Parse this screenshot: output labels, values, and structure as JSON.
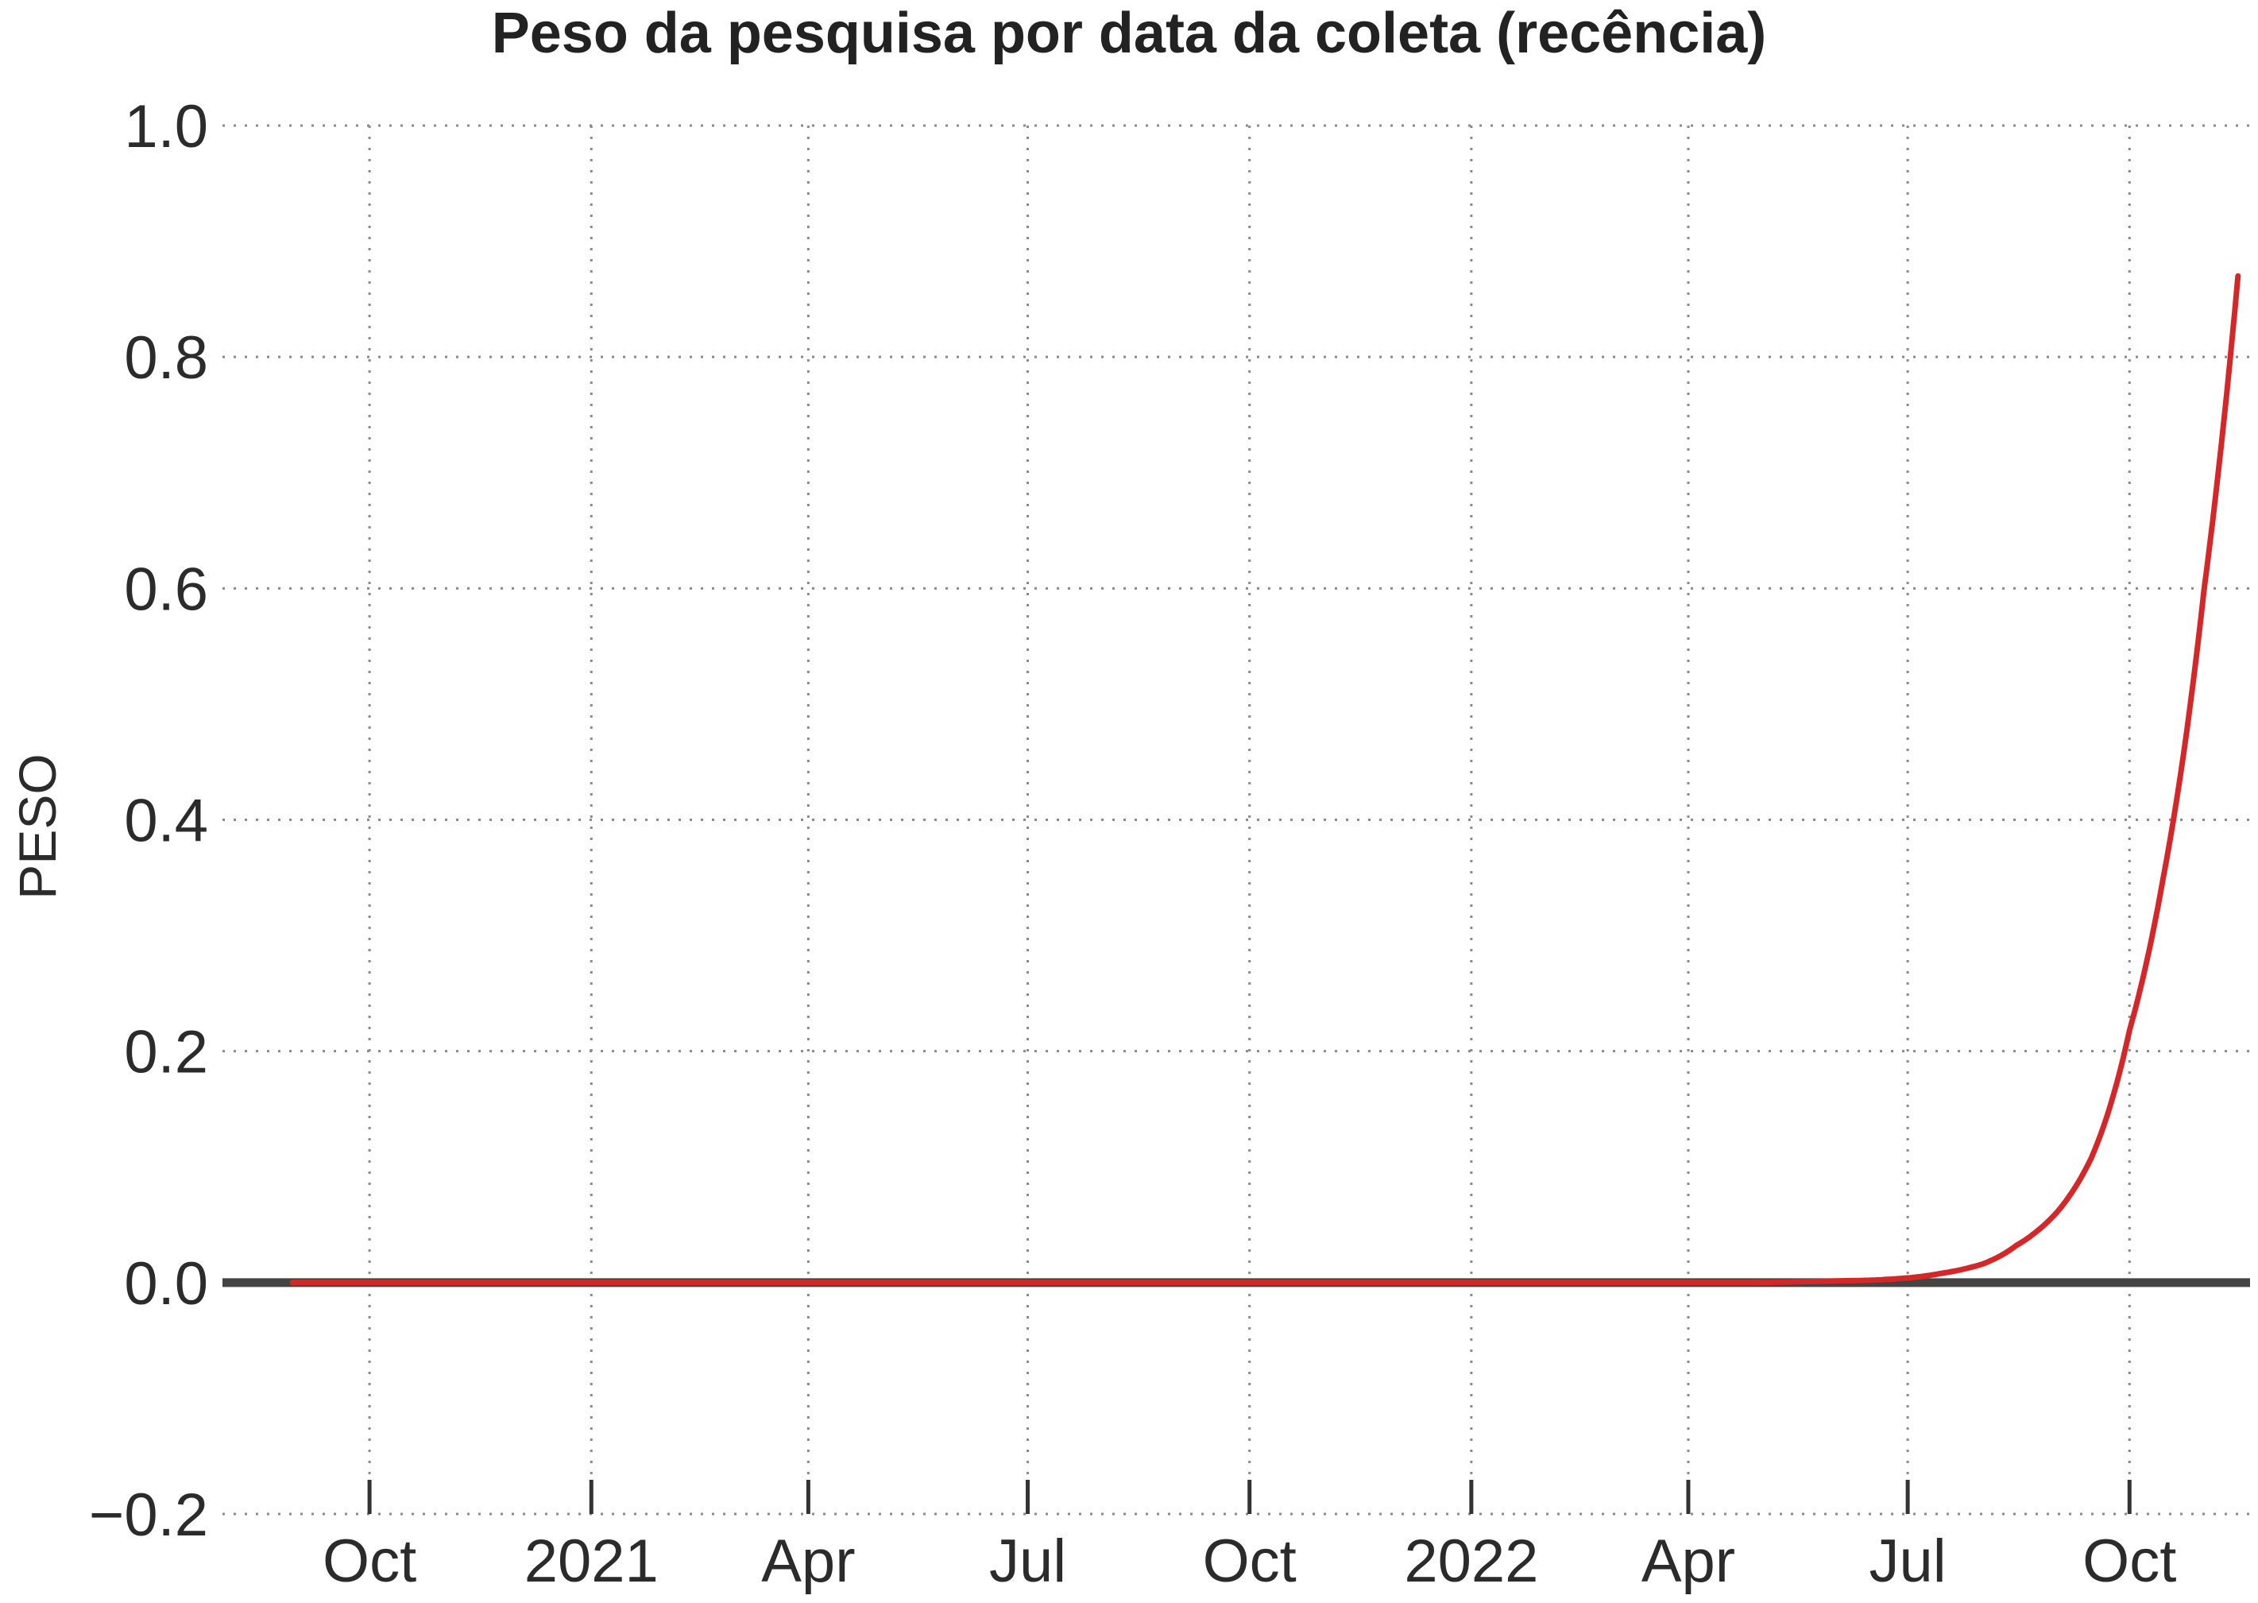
{
  "chart_data": {
    "type": "line",
    "title": "Peso da pesquisa por data da coleta (recência)",
    "xlabel": "",
    "ylabel": "PESO",
    "grid": true,
    "legend": "none",
    "xlim": [
      "2020-08-01",
      "2022-11-20"
    ],
    "ylim": [
      -0.2,
      1.0
    ],
    "x_ticks": [
      {
        "date": "2020-10-01",
        "label": "Oct"
      },
      {
        "date": "2021-01-01",
        "label": "2021"
      },
      {
        "date": "2021-04-01",
        "label": "Apr"
      },
      {
        "date": "2021-07-01",
        "label": "Jul"
      },
      {
        "date": "2021-10-01",
        "label": "Oct"
      },
      {
        "date": "2022-01-01",
        "label": "2022"
      },
      {
        "date": "2022-04-01",
        "label": "Apr"
      },
      {
        "date": "2022-07-01",
        "label": "Jul"
      },
      {
        "date": "2022-10-01",
        "label": "Oct"
      }
    ],
    "y_ticks": [
      {
        "value": 1.0,
        "label": "1.0"
      },
      {
        "value": 0.8,
        "label": "0.8"
      },
      {
        "value": 0.6,
        "label": "0.6"
      },
      {
        "value": 0.4,
        "label": "0.4"
      },
      {
        "value": 0.2,
        "label": "0.2"
      },
      {
        "value": 0.0,
        "label": "0.0"
      },
      {
        "value": -0.2,
        "label": "−0.2"
      }
    ],
    "baseline": {
      "value": 0.0,
      "color": "#444444"
    },
    "series": [
      {
        "color": "#d62728",
        "x": [
          "2020-08-30",
          "2021-07-01",
          "2022-05-01",
          "2022-06-15",
          "2022-07-01",
          "2022-07-15",
          "2022-08-01",
          "2022-08-15",
          "2022-09-01",
          "2022-09-15",
          "2022-10-01",
          "2022-10-15",
          "2022-11-01",
          "2022-11-15"
        ],
        "y": [
          0.0,
          0.0,
          0.0,
          0.002,
          0.004,
          0.008,
          0.016,
          0.032,
          0.061,
          0.107,
          0.218,
          0.35,
          0.6,
          0.87
        ]
      }
    ]
  }
}
